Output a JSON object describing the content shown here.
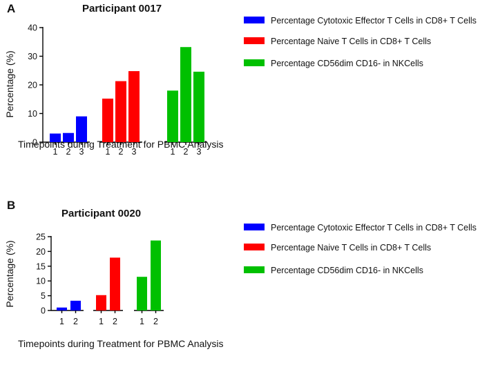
{
  "chart_data": [
    {
      "panel_label": "A",
      "type": "bar",
      "title": "Participant 0017",
      "xlabel": "Timepoints during Treatment for PBMC Analysis",
      "ylabel": "Percentage (%)",
      "ylim": [
        0,
        40
      ],
      "yticks": [
        "0",
        "10",
        "20",
        "30",
        "40"
      ],
      "yticks_values": [
        0,
        10,
        20,
        30,
        40
      ],
      "series": [
        {
          "name": "Percentage Cytotoxic Effector T Cells in CD8+ T Cells",
          "color": "#0000ff",
          "categories": [
            "1",
            "2",
            "3"
          ],
          "values": [
            3,
            3.2,
            9
          ]
        },
        {
          "name": "Percentage Naive T Cells in CD8+ T Cells",
          "color": "#ff0000",
          "categories": [
            "1",
            "2",
            "3"
          ],
          "values": [
            15.2,
            21.3,
            24.8
          ]
        },
        {
          "name": "Percentage CD56dim CD16- in NKCells",
          "color": "#00c000",
          "categories": [
            "1",
            "2",
            "3"
          ],
          "values": [
            18,
            33.2,
            24.6
          ]
        }
      ]
    },
    {
      "panel_label": "B",
      "type": "bar",
      "title": "Participant 0020",
      "xlabel": "Timepoints during Treatment for PBMC Analysis",
      "ylabel": "Percentage (%)",
      "ylim": [
        0,
        25
      ],
      "yticks": [
        "0",
        "5",
        "10",
        "15",
        "20",
        "25"
      ],
      "yticks_values": [
        0,
        5,
        10,
        15,
        20,
        25
      ],
      "series": [
        {
          "name": "Percentage Cytotoxic Effector T Cells in CD8+ T Cells",
          "color": "#0000ff",
          "categories": [
            "1",
            "2"
          ],
          "values": [
            1,
            3.3
          ]
        },
        {
          "name": "Percentage Naive T Cells in CD8+ T Cells",
          "color": "#ff0000",
          "categories": [
            "1",
            "2"
          ],
          "values": [
            5.2,
            17.9
          ]
        },
        {
          "name": "Percentage CD56dim CD16- in NKCells",
          "color": "#00c000",
          "categories": [
            "1",
            "2"
          ],
          "values": [
            11.4,
            23.7
          ]
        }
      ]
    }
  ]
}
